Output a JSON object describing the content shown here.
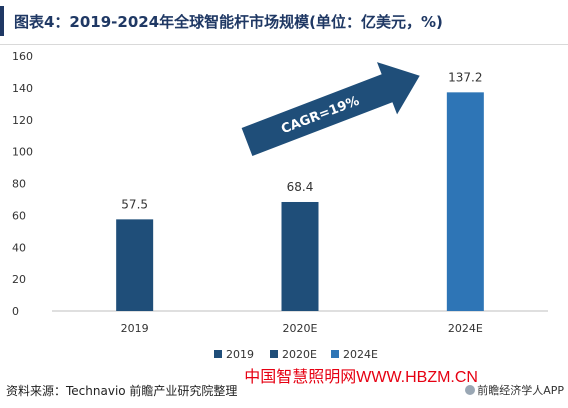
{
  "chart_data": {
    "type": "bar",
    "title": "图表4：2019-2024年全球智能杆市场规模(单位：亿美元，%)",
    "categories": [
      "2019",
      "2020E",
      "2024E"
    ],
    "series": [
      {
        "name": "2019",
        "values": [
          57.5,
          null,
          null
        ],
        "color": "#1f4e79"
      },
      {
        "name": "2020E",
        "values": [
          null,
          68.4,
          null
        ],
        "color": "#1f4e79"
      },
      {
        "name": "2024E",
        "values": [
          null,
          null,
          137.2
        ],
        "color": "#2e75b6"
      }
    ],
    "data_labels": [
      "57.5",
      "68.4",
      "137.2"
    ],
    "yticks": [
      "0",
      "20",
      "40",
      "60",
      "80",
      "100",
      "120",
      "140",
      "160"
    ],
    "ylim": [
      0,
      160
    ],
    "grid": false,
    "legend_position": "bottom",
    "annotation": "CAGR=19%"
  },
  "footer": {
    "source": "资料来源：Technavio 前瞻产业研究院整理",
    "watermark": "中国智慧照明网WWW.HBZM.CN",
    "publisher": "前瞻经济学人APP"
  }
}
